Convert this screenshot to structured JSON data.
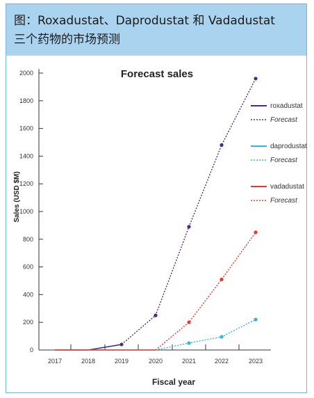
{
  "header": {
    "line1": "图：Roxadustat、Daprodustat 和 Vadadustat",
    "line2": "三个药物的市场预测"
  },
  "chart_data": {
    "type": "line",
    "title": "Forecast sales",
    "xlabel": "Fiscal year",
    "ylabel": "Sales (USD $M)",
    "categories": [
      "2017",
      "2018",
      "2019",
      "2020",
      "2021",
      "2022",
      "2023"
    ],
    "ylim": [
      0,
      2000
    ],
    "yticks": [
      0,
      200,
      400,
      600,
      800,
      1000,
      1200,
      1400,
      1600,
      1800,
      2000
    ],
    "grid": false,
    "legend_position": "right",
    "series": [
      {
        "name": "roxadustat",
        "forecast_label": "Forecast",
        "color": "#4b2a8c",
        "actual": [
          0,
          0,
          40
        ],
        "forecast": [
          40,
          250,
          890,
          1480,
          1960
        ],
        "forecast_start_index": 2
      },
      {
        "name": "daprodustat",
        "forecast_label": "Forecast",
        "color": "#3ab0dd",
        "actual": [
          0,
          0,
          0,
          0
        ],
        "forecast": [
          0,
          50,
          95,
          220
        ],
        "forecast_start_index": 3
      },
      {
        "name": "vadadustat",
        "forecast_label": "Forecast",
        "color": "#e53a2f",
        "actual": [
          0,
          0,
          0,
          0
        ],
        "forecast": [
          0,
          200,
          510,
          850
        ],
        "forecast_start_index": 3
      }
    ]
  }
}
